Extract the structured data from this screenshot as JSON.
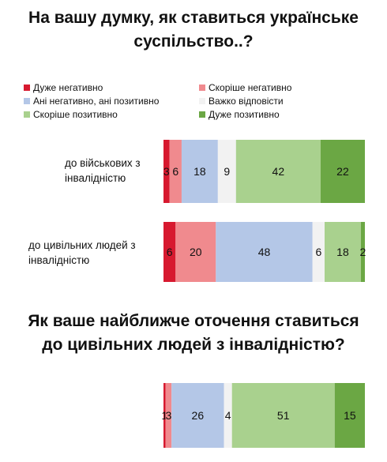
{
  "chart_data": [
    {
      "type": "bar",
      "orientation": "horizontal",
      "stacked": true,
      "title": [
        "На вашу думку, як ставиться українське",
        "суспільство..?"
      ],
      "categories": [
        [
          "до військових з",
          "інвалідністю"
        ],
        [
          "до цивільних людей з",
          "інвалідністю"
        ]
      ],
      "series": [
        {
          "name": "Дуже негативно",
          "color": "#d7192f",
          "values": [
            3,
            6
          ]
        },
        {
          "name": "Скоріше негативно",
          "color": "#f08a8e",
          "values": [
            6,
            20
          ]
        },
        {
          "name": "Ані негативно, ані позитивно",
          "color": "#b4c7e7",
          "values": [
            18,
            48
          ]
        },
        {
          "name": "Важко відповісти",
          "color": "#f2f2f2",
          "values": [
            9,
            6
          ]
        },
        {
          "name": "Скоріше позитивно",
          "color": "#a9d18e",
          "values": [
            42,
            18
          ]
        },
        {
          "name": "Дуже позитивно",
          "color": "#6ba744",
          "values": [
            22,
            2
          ]
        }
      ],
      "xlim": [
        0,
        100
      ],
      "legend_position": "top"
    },
    {
      "type": "bar",
      "orientation": "horizontal",
      "stacked": true,
      "title": [
        "Як ваше найближче оточення ставиться",
        "до цивільних людей з інвалідністю?"
      ],
      "categories": [
        ""
      ],
      "series": [
        {
          "name": "Дуже негативно",
          "color": "#d7192f",
          "values": [
            1
          ]
        },
        {
          "name": "Скоріше негативно",
          "color": "#f08a8e",
          "values": [
            3
          ]
        },
        {
          "name": "Ані негативно, ані позитивно",
          "color": "#b4c7e7",
          "values": [
            26
          ]
        },
        {
          "name": "Важко відповісти",
          "color": "#f2f2f2",
          "values": [
            4
          ]
        },
        {
          "name": "Скоріше позитивно",
          "color": "#a9d18e",
          "values": [
            51
          ]
        },
        {
          "name": "Дуже позитивно",
          "color": "#6ba744",
          "values": [
            15
          ]
        }
      ],
      "xlim": [
        0,
        100
      ]
    }
  ]
}
